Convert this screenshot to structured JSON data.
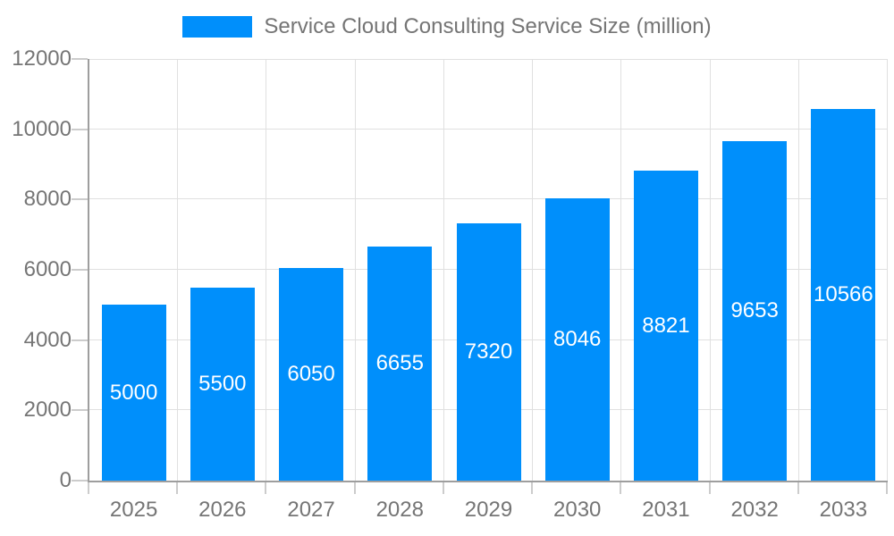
{
  "legend": {
    "label": "Service Cloud Consulting Service Size (million)",
    "position": "top"
  },
  "chart_data": {
    "type": "bar",
    "title": "Service Cloud Consulting Service Size (million)",
    "categories": [
      "2025",
      "2026",
      "2027",
      "2028",
      "2029",
      "2030",
      "2031",
      "2032",
      "2033"
    ],
    "values": [
      5000,
      5500,
      6050,
      6655,
      7320,
      8046,
      8821,
      9653,
      10566
    ],
    "xlabel": "",
    "ylabel": "",
    "ylim": [
      0,
      12000
    ],
    "yticks": [
      0,
      2000,
      4000,
      6000,
      8000,
      10000,
      12000
    ],
    "grid": true,
    "legend_position": "top",
    "value_labels_inside_bars": true,
    "colors": {
      "bar": "#008FFB",
      "value_label": "#FFFFFF",
      "axis_text": "#757575",
      "grid_line": "#E0E0E0",
      "axis_line": "#9E9E9E",
      "tick": "#CCCCCC",
      "background": "#FFFFFF"
    }
  }
}
